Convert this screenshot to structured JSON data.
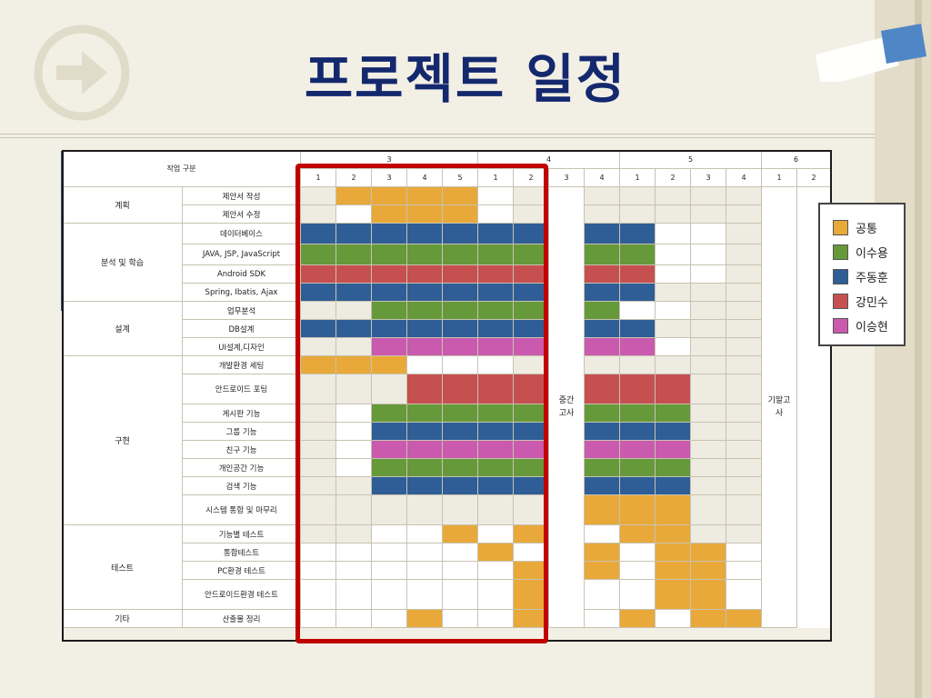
{
  "title": "프로젝트 일정",
  "colors": {
    "Y": "#e8a93a",
    "G": "#66993a",
    "B": "#2f5e96",
    "R": "#c65050",
    "M": "#c95aad",
    "W": "#ffffff",
    "E": "#eeebe1"
  },
  "header": {
    "corner_label": "작업 구분",
    "months": [
      {
        "label": "3",
        "span": 5
      },
      {
        "label": "4",
        "span": 4
      },
      {
        "label": "5",
        "span": 4
      },
      {
        "label": "6",
        "span": 2
      }
    ],
    "weeks": [
      "1",
      "2",
      "3",
      "4",
      "5",
      "1",
      "2",
      "3",
      "4",
      "1",
      "2",
      "3",
      "4",
      "1",
      "2"
    ]
  },
  "exam_mid": "중간\n고사",
  "exam_final": "기말고\n사",
  "rows": [
    {
      "category": "계획",
      "task": "제안서 작성",
      "cells": "EYYYYWE-EEEEE"
    },
    {
      "task": "제안서 수정",
      "cells": "EWYYYWE-EEEEE"
    },
    {
      "category": "분석 및 학습",
      "task": "데이터베이스",
      "cells": "BBBBBBB-BBWWE"
    },
    {
      "task": "JAVA,  JSP,  JavaScript",
      "cells": "GGGGGGG-GGWWE"
    },
    {
      "task": "Android SDK",
      "cells": "RRRRRRR-RRWWE"
    },
    {
      "task": "Spring,  Ibatis,  Ajax",
      "cells": "BBBBBBB-BBEEE"
    },
    {
      "category": "설계",
      "task": "업무분석",
      "cells": "EEGGGGG-GWWEE"
    },
    {
      "task": "DB설계",
      "cells": "BBBBBBB-BBEEE"
    },
    {
      "task": "UI설계,디자인",
      "cells": "EEMMMMM-MMWEE"
    },
    {
      "category": "구현",
      "task": "개발환경 세팅",
      "cells": "YYYWWWE-EEEEE"
    },
    {
      "task": "안드로이드 포팅",
      "cells": "EEERRRR-RRREE"
    },
    {
      "task": "게시판 기능",
      "cells": "EWGGGGG-GGGEE"
    },
    {
      "task": "그룹 기능",
      "cells": "EWBBBBB-BBBEE"
    },
    {
      "task": "친구 기능",
      "cells": "EWMMMMM-MMMEE"
    },
    {
      "task": "개인공간 기능",
      "cells": "EWGGGGG-GGGEE"
    },
    {
      "task": "검색 기능",
      "cells": "EEBBBBB-BBBEE"
    },
    {
      "task": "시스템 통합 및 마무리",
      "cells": "EEEEEEE-YYYEE"
    },
    {
      "category": "테스트",
      "task": "기능별 테스트",
      "cells": "EEWWYWY-WYYEE"
    },
    {
      "task": "통합테스트",
      "cells": "WWWWWYW-YWYYW"
    },
    {
      "task": "PC환경 테스트",
      "cells": "WWWWWWY-YWYYW"
    },
    {
      "task": "안드로이드환경 테스트",
      "cells": "WWWWWWY-WWYYW"
    },
    {
      "category": "기타",
      "task": "산출물 정리",
      "cells": "WWWYWWY-WYWYY"
    }
  ],
  "legend": [
    {
      "label": "공통",
      "color": "#e8a93a"
    },
    {
      "label": "이수용",
      "color": "#66993a"
    },
    {
      "label": "주동훈",
      "color": "#2f5e96"
    },
    {
      "label": "강민수",
      "color": "#c65050"
    },
    {
      "label": "이승현",
      "color": "#c95aad"
    }
  ]
}
